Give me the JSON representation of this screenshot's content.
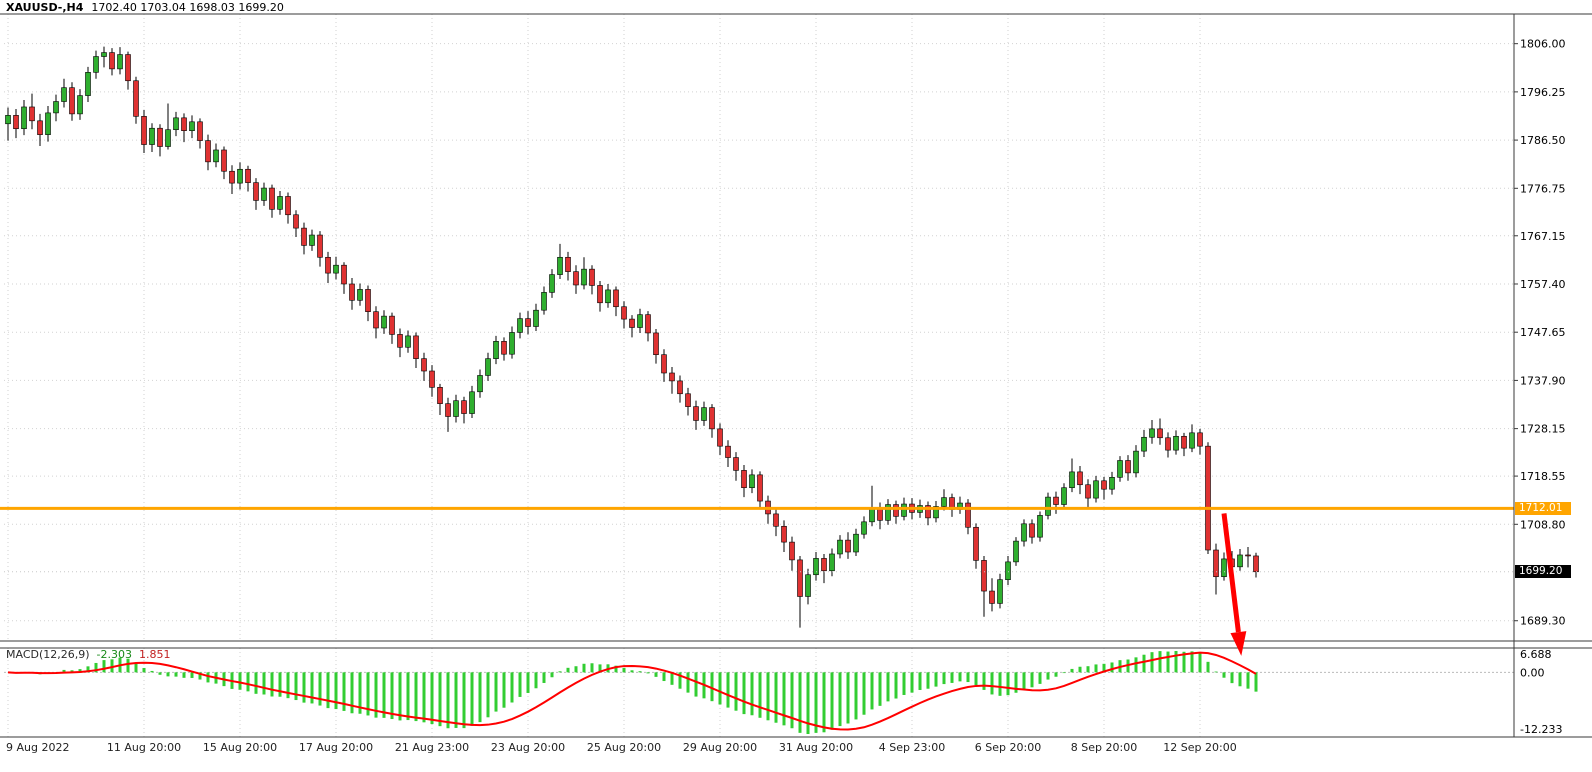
{
  "header": {
    "symbol_timeframe": "XAUUSD-,H4",
    "ohlc": "1702.40 1703.04 1698.03 1699.20"
  },
  "price_tags": {
    "line_price": "1712.01",
    "bid_price": "1699.20"
  },
  "macd": {
    "name": "MACD(12,26,9)",
    "main_value": "-2.303",
    "signal_value": "1.851",
    "axis": [
      "6.688",
      "0.00",
      "-12.233"
    ]
  },
  "colors": {
    "up_body": "#2FAF2F",
    "down_body": "#E03232",
    "wick": "#000000",
    "grid": "#D2D2D2",
    "hline": "#FFA500",
    "bid_line": "#C8C8C8",
    "macd_hist": "#32CD32",
    "macd_signal": "#FF0000",
    "arrow": "#FF0000",
    "border": "#3A3A3A",
    "axis_text": "#000000",
    "time_text": "#222222"
  },
  "chart_data": {
    "type": "candlestick",
    "title": "XAUUSD-,H4",
    "symbol": "XAUUSD-",
    "timeframe": "H4",
    "current_ohlc": {
      "open": 1702.4,
      "high": 1703.04,
      "low": 1698.03,
      "close": 1699.2
    },
    "ylim": [
      1685.2,
      1812.0
    ],
    "grid": true,
    "price_axis_ticks": [
      "1806.00",
      "1796.25",
      "1786.50",
      "1776.75",
      "1767.15",
      "1757.40",
      "1747.65",
      "1737.90",
      "1728.15",
      "1718.55",
      "1708.80",
      "1689.30"
    ],
    "time_axis": [
      {
        "label": "9 Aug 2022",
        "i": 0
      },
      {
        "label": "11 Aug 20:00",
        "i": 17
      },
      {
        "label": "15 Aug 20:00",
        "i": 29
      },
      {
        "label": "17 Aug 20:00",
        "i": 41
      },
      {
        "label": "21 Aug 23:00",
        "i": 53
      },
      {
        "label": "23 Aug 20:00",
        "i": 65
      },
      {
        "label": "25 Aug 20:00",
        "i": 77
      },
      {
        "label": "29 Aug 20:00",
        "i": 89
      },
      {
        "label": "31 Aug 20:00",
        "i": 101
      },
      {
        "label": "4 Sep 23:00",
        "i": 113
      },
      {
        "label": "6 Sep 20:00",
        "i": 125
      },
      {
        "label": "8 Sep 20:00",
        "i": 137
      },
      {
        "label": "12 Sep 20:00",
        "i": 149
      }
    ],
    "horizontal_line": 1712.01,
    "bid_price": 1699.2,
    "macd_settings": {
      "fast": 12,
      "slow": 26,
      "signal_period": 9,
      "main_value": -2.303,
      "signal_value": 1.851,
      "panel_max": 6.688,
      "panel_min": -12.233
    },
    "annotation_arrow": {
      "direction": "down",
      "color": "#FF0000",
      "start_index": 152,
      "start_price": 1711.0,
      "end_index": 153.8,
      "end_price": 1687.0
    },
    "candles": [
      [
        1789.8,
        1793.1,
        1786.4,
        1791.5
      ],
      [
        1791.5,
        1792.8,
        1786.9,
        1788.8
      ],
      [
        1788.8,
        1794.6,
        1787.5,
        1793.2
      ],
      [
        1793.2,
        1795.9,
        1788.7,
        1790.4
      ],
      [
        1790.4,
        1791.8,
        1785.3,
        1787.6
      ],
      [
        1787.6,
        1793.4,
        1786.2,
        1792.0
      ],
      [
        1792.0,
        1795.7,
        1790.3,
        1794.3
      ],
      [
        1794.3,
        1798.9,
        1793.1,
        1797.1
      ],
      [
        1797.1,
        1798.2,
        1790.4,
        1791.8
      ],
      [
        1791.8,
        1796.8,
        1790.6,
        1795.5
      ],
      [
        1795.5,
        1801.3,
        1794.2,
        1800.2
      ],
      [
        1800.2,
        1804.6,
        1798.9,
        1803.4
      ],
      [
        1803.4,
        1805.4,
        1801.2,
        1804.2
      ],
      [
        1804.2,
        1805.1,
        1799.6,
        1800.9
      ],
      [
        1800.9,
        1805.3,
        1799.8,
        1803.8
      ],
      [
        1803.8,
        1804.4,
        1796.7,
        1798.5
      ],
      [
        1798.5,
        1799.3,
        1789.8,
        1791.3
      ],
      [
        1791.3,
        1792.6,
        1783.9,
        1785.6
      ],
      [
        1785.6,
        1789.9,
        1784.1,
        1788.9
      ],
      [
        1788.9,
        1789.7,
        1783.2,
        1785.2
      ],
      [
        1785.2,
        1793.9,
        1784.6,
        1788.6
      ],
      [
        1788.6,
        1792.2,
        1787.3,
        1791.0
      ],
      [
        1791.0,
        1791.9,
        1786.1,
        1788.4
      ],
      [
        1788.4,
        1791.5,
        1786.9,
        1790.2
      ],
      [
        1790.2,
        1790.9,
        1784.8,
        1786.4
      ],
      [
        1786.4,
        1787.6,
        1780.4,
        1782.1
      ],
      [
        1782.1,
        1785.8,
        1781.0,
        1784.5
      ],
      [
        1784.5,
        1785.2,
        1778.6,
        1780.2
      ],
      [
        1780.2,
        1781.4,
        1775.6,
        1777.8
      ],
      [
        1777.8,
        1782.0,
        1776.5,
        1780.6
      ],
      [
        1780.6,
        1781.3,
        1776.1,
        1777.9
      ],
      [
        1777.9,
        1778.8,
        1772.4,
        1774.3
      ],
      [
        1774.3,
        1777.9,
        1773.2,
        1776.8
      ],
      [
        1776.8,
        1777.5,
        1770.8,
        1772.5
      ],
      [
        1772.5,
        1776.2,
        1771.4,
        1775.1
      ],
      [
        1775.1,
        1775.9,
        1769.6,
        1771.4
      ],
      [
        1771.4,
        1772.3,
        1766.9,
        1768.7
      ],
      [
        1768.7,
        1769.8,
        1763.4,
        1765.2
      ],
      [
        1765.2,
        1768.4,
        1764.1,
        1767.3
      ],
      [
        1767.3,
        1768.1,
        1760.9,
        1762.8
      ],
      [
        1762.8,
        1763.9,
        1757.6,
        1759.6
      ],
      [
        1759.6,
        1762.9,
        1758.3,
        1761.2
      ],
      [
        1761.2,
        1761.8,
        1755.4,
        1757.4
      ],
      [
        1757.4,
        1758.6,
        1752.2,
        1754.1
      ],
      [
        1754.1,
        1757.5,
        1753.0,
        1756.3
      ],
      [
        1756.3,
        1757.1,
        1749.9,
        1751.8
      ],
      [
        1751.8,
        1752.9,
        1746.4,
        1748.5
      ],
      [
        1748.5,
        1752.1,
        1747.3,
        1750.9
      ],
      [
        1750.9,
        1751.6,
        1745.3,
        1747.2
      ],
      [
        1747.2,
        1748.4,
        1742.6,
        1744.6
      ],
      [
        1744.6,
        1748.0,
        1743.5,
        1746.9
      ],
      [
        1746.9,
        1747.6,
        1740.4,
        1742.3
      ],
      [
        1742.3,
        1743.5,
        1737.8,
        1739.8
      ],
      [
        1739.8,
        1741.0,
        1734.6,
        1736.5
      ],
      [
        1736.5,
        1737.2,
        1730.9,
        1733.2
      ],
      [
        1733.2,
        1734.4,
        1727.5,
        1730.6
      ],
      [
        1730.6,
        1735.0,
        1729.4,
        1733.8
      ],
      [
        1733.8,
        1734.6,
        1729.2,
        1731.2
      ],
      [
        1731.2,
        1736.8,
        1730.3,
        1735.6
      ],
      [
        1735.6,
        1740.1,
        1734.4,
        1738.9
      ],
      [
        1738.9,
        1743.5,
        1737.8,
        1742.3
      ],
      [
        1742.3,
        1746.9,
        1741.2,
        1745.8
      ],
      [
        1745.8,
        1746.6,
        1741.9,
        1743.2
      ],
      [
        1743.2,
        1748.8,
        1742.3,
        1747.6
      ],
      [
        1747.6,
        1751.6,
        1746.4,
        1750.4
      ],
      [
        1750.4,
        1751.9,
        1747.2,
        1748.8
      ],
      [
        1748.8,
        1753.4,
        1747.9,
        1752.1
      ],
      [
        1752.1,
        1756.9,
        1751.2,
        1755.7
      ],
      [
        1755.7,
        1760.4,
        1754.6,
        1759.3
      ],
      [
        1759.3,
        1765.5,
        1758.4,
        1762.8
      ],
      [
        1762.8,
        1763.9,
        1758.1,
        1759.9
      ],
      [
        1759.9,
        1761.2,
        1755.4,
        1757.2
      ],
      [
        1757.2,
        1762.8,
        1756.3,
        1760.4
      ],
      [
        1760.4,
        1761.2,
        1755.3,
        1757.1
      ],
      [
        1757.1,
        1758.0,
        1751.8,
        1753.6
      ],
      [
        1753.6,
        1757.4,
        1752.6,
        1756.2
      ],
      [
        1756.2,
        1756.9,
        1750.9,
        1752.8
      ],
      [
        1752.8,
        1753.9,
        1748.4,
        1750.3
      ],
      [
        1750.3,
        1751.1,
        1746.6,
        1748.6
      ],
      [
        1748.6,
        1752.4,
        1747.5,
        1751.2
      ],
      [
        1751.2,
        1751.9,
        1745.8,
        1747.5
      ],
      [
        1747.5,
        1748.3,
        1741.3,
        1743.1
      ],
      [
        1743.1,
        1744.2,
        1737.6,
        1739.4
      ],
      [
        1739.4,
        1740.6,
        1735.2,
        1737.8
      ],
      [
        1737.8,
        1738.9,
        1733.4,
        1735.2
      ],
      [
        1735.2,
        1736.4,
        1730.8,
        1732.6
      ],
      [
        1732.6,
        1733.8,
        1727.9,
        1729.8
      ],
      [
        1729.8,
        1733.6,
        1728.7,
        1732.4
      ],
      [
        1732.4,
        1733.1,
        1726.3,
        1728.1
      ],
      [
        1728.1,
        1729.2,
        1722.8,
        1724.6
      ],
      [
        1724.6,
        1725.8,
        1720.4,
        1722.3
      ],
      [
        1722.3,
        1723.4,
        1717.6,
        1719.7
      ],
      [
        1719.7,
        1720.8,
        1714.3,
        1716.2
      ],
      [
        1716.2,
        1719.9,
        1715.1,
        1718.8
      ],
      [
        1718.8,
        1719.5,
        1711.8,
        1713.5
      ],
      [
        1713.5,
        1714.6,
        1708.9,
        1710.9
      ],
      [
        1710.9,
        1711.8,
        1706.4,
        1708.4
      ],
      [
        1708.4,
        1709.6,
        1703.2,
        1705.2
      ],
      [
        1705.2,
        1706.3,
        1699.4,
        1701.6
      ],
      [
        1701.6,
        1702.4,
        1687.9,
        1694.2
      ],
      [
        1694.2,
        1699.8,
        1692.6,
        1698.6
      ],
      [
        1698.6,
        1703.2,
        1697.4,
        1701.9
      ],
      [
        1701.9,
        1702.8,
        1696.9,
        1699.4
      ],
      [
        1699.4,
        1703.9,
        1698.3,
        1702.8
      ],
      [
        1702.8,
        1706.6,
        1701.9,
        1705.6
      ],
      [
        1705.6,
        1707.2,
        1701.8,
        1703.2
      ],
      [
        1703.2,
        1707.9,
        1702.4,
        1706.8
      ],
      [
        1706.8,
        1710.4,
        1705.9,
        1709.3
      ],
      [
        1709.3,
        1716.6,
        1708.4,
        1712.1
      ],
      [
        1712.1,
        1713.2,
        1707.8,
        1709.6
      ],
      [
        1709.6,
        1713.9,
        1708.7,
        1712.8
      ],
      [
        1712.8,
        1713.6,
        1708.9,
        1710.4
      ],
      [
        1710.4,
        1714.2,
        1709.6,
        1712.9
      ],
      [
        1712.9,
        1714.1,
        1709.8,
        1711.2
      ],
      [
        1711.2,
        1713.8,
        1710.1,
        1712.6
      ],
      [
        1712.6,
        1713.4,
        1708.6,
        1710.1
      ],
      [
        1710.1,
        1713.5,
        1709.2,
        1712.4
      ],
      [
        1712.4,
        1715.9,
        1711.6,
        1714.2
      ],
      [
        1714.2,
        1715.0,
        1710.3,
        1711.8
      ],
      [
        1711.8,
        1714.4,
        1710.9,
        1713.1
      ],
      [
        1713.1,
        1713.9,
        1706.8,
        1708.2
      ],
      [
        1708.2,
        1709.0,
        1699.8,
        1701.5
      ],
      [
        1701.5,
        1702.4,
        1690.1,
        1695.3
      ],
      [
        1695.3,
        1697.9,
        1691.2,
        1692.8
      ],
      [
        1692.8,
        1698.8,
        1691.8,
        1697.6
      ],
      [
        1697.6,
        1702.4,
        1696.5,
        1701.2
      ],
      [
        1701.2,
        1706.2,
        1700.4,
        1705.4
      ],
      [
        1705.4,
        1709.8,
        1704.3,
        1708.9
      ],
      [
        1708.9,
        1709.8,
        1704.9,
        1706.2
      ],
      [
        1706.2,
        1711.4,
        1705.3,
        1710.6
      ],
      [
        1710.6,
        1715.2,
        1709.8,
        1714.3
      ],
      [
        1714.3,
        1715.4,
        1710.9,
        1712.8
      ],
      [
        1712.8,
        1717.1,
        1711.9,
        1716.2
      ],
      [
        1716.2,
        1722.1,
        1715.3,
        1719.4
      ],
      [
        1719.4,
        1720.6,
        1714.9,
        1716.8
      ],
      [
        1716.8,
        1717.9,
        1712.3,
        1714.1
      ],
      [
        1714.1,
        1718.6,
        1713.2,
        1717.6
      ],
      [
        1717.6,
        1718.4,
        1713.8,
        1715.9
      ],
      [
        1715.9,
        1719.4,
        1714.8,
        1718.3
      ],
      [
        1718.3,
        1722.6,
        1717.4,
        1721.7
      ],
      [
        1721.7,
        1722.8,
        1717.6,
        1719.2
      ],
      [
        1719.2,
        1724.8,
        1718.3,
        1723.6
      ],
      [
        1723.6,
        1727.9,
        1722.4,
        1726.4
      ],
      [
        1726.4,
        1729.9,
        1725.1,
        1728.1
      ],
      [
        1728.1,
        1730.2,
        1724.9,
        1726.3
      ],
      [
        1726.3,
        1727.4,
        1722.3,
        1723.8
      ],
      [
        1723.8,
        1727.8,
        1722.9,
        1726.6
      ],
      [
        1726.6,
        1727.3,
        1722.6,
        1724.2
      ],
      [
        1724.2,
        1729.0,
        1723.4,
        1727.3
      ],
      [
        1727.3,
        1728.1,
        1722.9,
        1724.6
      ],
      [
        1724.6,
        1725.4,
        1702.8,
        1703.6
      ],
      [
        1703.6,
        1704.9,
        1694.6,
        1698.2
      ],
      [
        1698.2,
        1703.1,
        1697.4,
        1701.8
      ],
      [
        1701.8,
        1703.4,
        1698.6,
        1700.2
      ],
      [
        1700.2,
        1703.8,
        1699.4,
        1702.6
      ],
      [
        1702.6,
        1704.2,
        1700.1,
        1702.4
      ],
      [
        1702.4,
        1703.04,
        1698.03,
        1699.2
      ]
    ]
  }
}
